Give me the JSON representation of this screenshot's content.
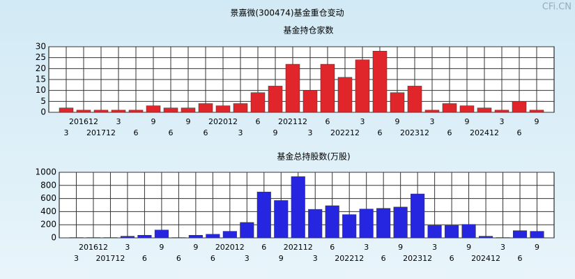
{
  "title": "景嘉微(300474)基金重仓变动",
  "watermark": "CFi.CN",
  "chart_data": [
    {
      "type": "bar",
      "title": "基金持仓家数",
      "categories": [
        "3",
        "201612",
        "201712",
        "3",
        "6",
        "9",
        "6",
        "9",
        "6",
        "202012",
        "3",
        "6",
        "9",
        "202112",
        "3",
        "6",
        "202212",
        "3",
        "6",
        "9",
        "202312",
        "3",
        "6",
        "9",
        "202412",
        "3",
        "6",
        "9"
      ],
      "values": [
        2,
        1,
        1,
        1,
        1,
        3,
        2,
        2,
        4,
        3,
        4,
        9,
        12,
        22,
        10,
        22,
        16,
        24,
        28,
        9,
        12,
        1,
        4,
        3,
        2,
        1,
        5,
        1
      ],
      "color": "#e0262b",
      "ylim": [
        0,
        30
      ],
      "yticks": [
        0,
        5,
        10,
        15,
        20,
        25,
        30
      ],
      "grid": true
    },
    {
      "type": "bar",
      "title": "基金总持股数(万股)",
      "categories": [
        "3",
        "201612",
        "201712",
        "3",
        "6",
        "9",
        "6",
        "9",
        "6",
        "202012",
        "3",
        "6",
        "9",
        "202112",
        "3",
        "6",
        "202212",
        "3",
        "6",
        "9",
        "202312",
        "3",
        "6",
        "9",
        "202412",
        "3",
        "6",
        "9"
      ],
      "values": [
        5,
        5,
        5,
        25,
        40,
        120,
        5,
        40,
        55,
        100,
        235,
        700,
        570,
        935,
        435,
        490,
        355,
        440,
        450,
        470,
        670,
        190,
        190,
        205,
        25,
        5,
        110,
        100
      ],
      "color": "#2626e0",
      "ylim": [
        0,
        1000
      ],
      "yticks": [
        0,
        200,
        400,
        600,
        800,
        1000
      ],
      "grid": true
    }
  ]
}
